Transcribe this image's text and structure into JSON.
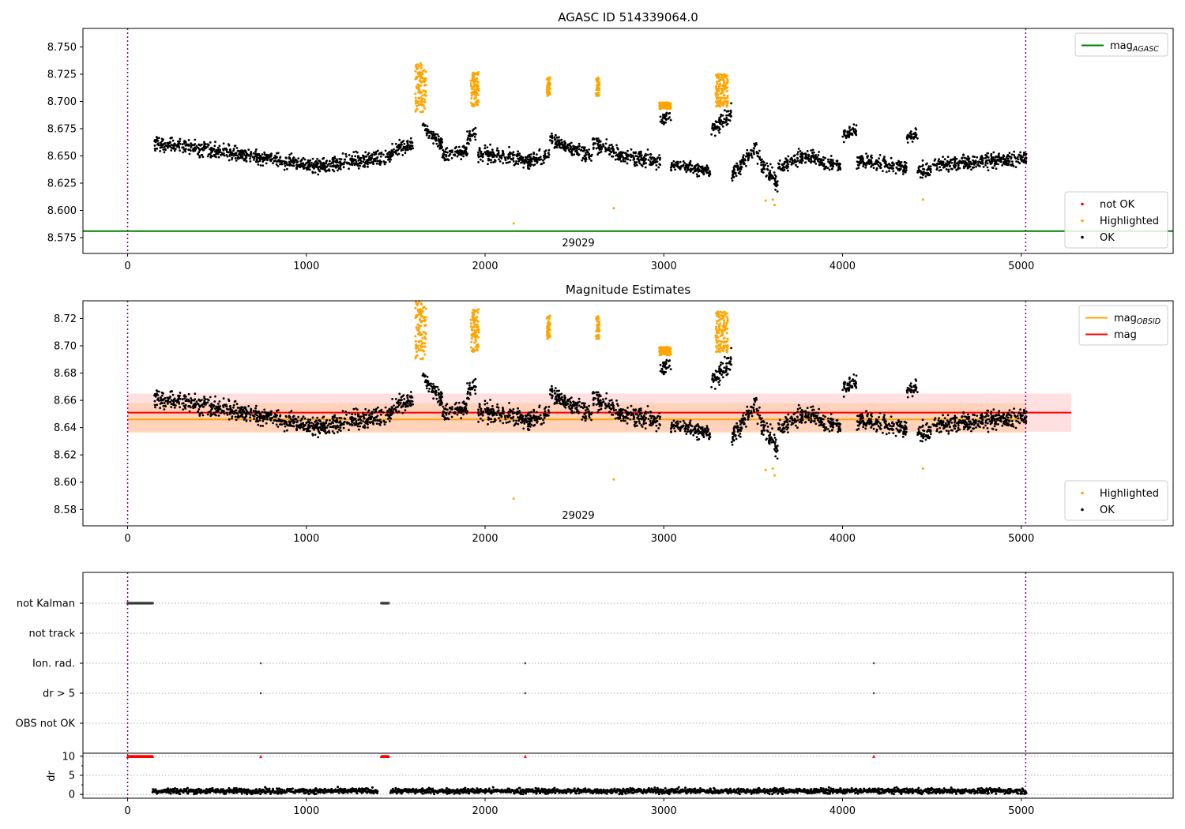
{
  "chart_data": [
    {
      "type": "scatter",
      "title": "AGASC ID 514339064.0",
      "xlabel": "",
      "ylabel": "",
      "xlim": [
        -250,
        5850
      ],
      "ylim": [
        8.5605,
        8.767
      ],
      "xticks": [
        "0",
        "1000",
        "2000",
        "3000",
        "4000",
        "5000"
      ],
      "yticks": [
        "8.575",
        "8.600",
        "8.625",
        "8.650",
        "8.675",
        "8.700",
        "8.725",
        "8.750"
      ],
      "vlines": [
        0,
        5025
      ],
      "obsid_label": "29029",
      "obsid_label_x": 2500,
      "grid": false,
      "legends": [
        {
          "placement": "upper-right",
          "entries": [
            {
              "label": "mag",
              "sub": "AGASC",
              "color": "#008000",
              "kind": "line"
            }
          ]
        },
        {
          "placement": "lower-right",
          "entries": [
            {
              "label": "not OK",
              "color": "#ff0000",
              "kind": "dot"
            },
            {
              "label": "Highlighted",
              "color": "#ffa500",
              "kind": "dot"
            },
            {
              "label": "OK",
              "color": "#000000",
              "kind": "dot"
            }
          ]
        }
      ],
      "lines": [
        {
          "name": "mag_AGASC",
          "y": 8.581,
          "color": "#008000",
          "x_range": [
            -250,
            5850
          ]
        }
      ],
      "series": [
        {
          "name": "OK",
          "color": "#000000",
          "segments": [
            [
              150,
              1120,
              8.662,
              8.64,
              0.006
            ],
            [
              1120,
              1280,
              8.64,
              8.648,
              0.006
            ],
            [
              1280,
              1480,
              8.645,
              8.65,
              0.006
            ],
            [
              1480,
              1600,
              8.655,
              8.662,
              0.006
            ],
            [
              1650,
              1760,
              8.678,
              8.66,
              0.006
            ],
            [
              1760,
              1900,
              8.65,
              8.655,
              0.006
            ],
            [
              1900,
              1950,
              8.665,
              8.672,
              0.006
            ],
            [
              1960,
              2200,
              8.652,
              8.648,
              0.006
            ],
            [
              2200,
              2360,
              8.645,
              8.65,
              0.006
            ],
            [
              2360,
              2600,
              8.665,
              8.65,
              0.006
            ],
            [
              2600,
              2760,
              8.662,
              8.65,
              0.006
            ],
            [
              2760,
              2980,
              8.65,
              8.645,
              0.006
            ],
            [
              2980,
              3040,
              8.683,
              8.685,
              0.005
            ],
            [
              3040,
              3260,
              8.642,
              8.636,
              0.005
            ],
            [
              3260,
              3380,
              8.672,
              8.69,
              0.007
            ],
            [
              3380,
              3520,
              8.632,
              8.66,
              0.006
            ],
            [
              3520,
              3640,
              8.65,
              8.622,
              0.007
            ],
            [
              3640,
              3800,
              8.64,
              8.65,
              0.006
            ],
            [
              3800,
              4000,
              8.65,
              8.64,
              0.006
            ],
            [
              4000,
              4080,
              8.67,
              8.672,
              0.006
            ],
            [
              4080,
              4360,
              8.645,
              8.64,
              0.006
            ],
            [
              4360,
              4420,
              8.668,
              8.668,
              0.005
            ],
            [
              4420,
              4500,
              8.635,
              8.638,
              0.006
            ],
            [
              4500,
              5030,
              8.642,
              8.648,
              0.006
            ]
          ]
        },
        {
          "name": "Highlighted",
          "color": "#ffa500",
          "clusters": [
            [
              1610,
              1670,
              8.69,
              8.735
            ],
            [
              1920,
              1965,
              8.695,
              8.727
            ],
            [
              2345,
              2365,
              8.705,
              8.722
            ],
            [
              2620,
              2640,
              8.705,
              8.722
            ],
            [
              2975,
              3040,
              8.693,
              8.699
            ],
            [
              3290,
              3360,
              8.695,
              8.725
            ]
          ],
          "points": [
            [
              2160,
              8.588
            ],
            [
              2720,
              8.602
            ],
            [
              3570,
              8.609
            ],
            [
              3620,
              8.605
            ],
            [
              3610,
              8.61
            ],
            [
              4450,
              8.61
            ]
          ]
        }
      ]
    },
    {
      "type": "scatter",
      "title": "Magnitude Estimates",
      "xlabel": "",
      "ylabel": "",
      "xlim": [
        -250,
        5850
      ],
      "ylim": [
        8.568,
        8.733
      ],
      "xticks": [
        "0",
        "1000",
        "2000",
        "3000",
        "4000",
        "5000"
      ],
      "yticks": [
        "8.58",
        "8.60",
        "8.62",
        "8.64",
        "8.66",
        "8.68",
        "8.70",
        "8.72"
      ],
      "vlines": [
        0,
        5025
      ],
      "obsid_label": "29029",
      "obsid_label_x": 2500,
      "grid": false,
      "legends": [
        {
          "placement": "upper-right",
          "entries": [
            {
              "label": "mag",
              "sub": "OBSID",
              "color": "#ffa500",
              "kind": "line"
            },
            {
              "label": "mag",
              "sub": "",
              "color": "#ff0000",
              "kind": "line"
            }
          ]
        },
        {
          "placement": "lower-right",
          "entries": [
            {
              "label": "Highlighted",
              "color": "#ffa500",
              "kind": "dot"
            },
            {
              "label": "OK",
              "color": "#000000",
              "kind": "dot"
            }
          ]
        }
      ],
      "lines": [
        {
          "name": "mag_OBSID",
          "y": 8.646,
          "color": "#ffa500",
          "x_range": [
            0,
            5025
          ],
          "band": [
            8.636,
            8.658
          ]
        },
        {
          "name": "mag",
          "y": 8.651,
          "color": "#ff0000",
          "x_range": [
            0,
            5280
          ],
          "band": [
            8.637,
            8.665
          ]
        }
      ]
    },
    {
      "type": "scatter",
      "title": "",
      "xlabel": "",
      "ylabel": "",
      "xlim": [
        -250,
        5850
      ],
      "vlines": [
        0,
        5025
      ],
      "flag_rows": [
        "not Kalman",
        "not track",
        "Ion. rad.",
        "dr > 5",
        "OBS not OK"
      ],
      "flags": {
        "not Kalman": [
          [
            0,
            140,
            40
          ],
          [
            1420,
            1460,
            12
          ]
        ],
        "not track": [],
        "Ion. rad.": [
          [
            745
          ],
          [
            2225
          ],
          [
            4175
          ]
        ],
        "dr > 5": [
          [
            745
          ],
          [
            2225
          ],
          [
            4175
          ]
        ],
        "OBS not OK": []
      },
      "dr": {
        "ylabel": "dr",
        "yticks": [
          "0",
          "5",
          "10"
        ],
        "ylim": [
          -1,
          10.8
        ],
        "red_markers": [
          [
            0,
            140,
            40
          ],
          [
            745,
            745,
            1
          ],
          [
            1420,
            1460,
            12
          ],
          [
            2225,
            2225,
            1
          ],
          [
            4175,
            4175,
            1
          ]
        ],
        "baseline_range": [
          140,
          5030
        ],
        "typical": 0.9
      }
    }
  ]
}
